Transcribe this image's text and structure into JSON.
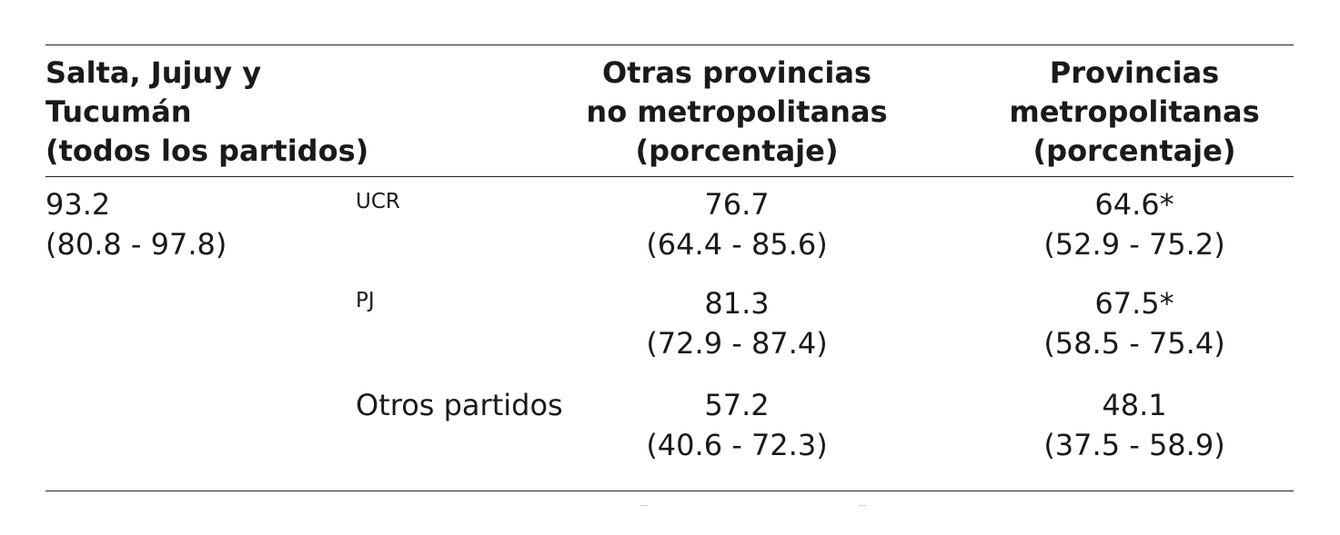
{
  "headers": {
    "col1": [
      "Salta, Jujuy y",
      "Tucumán",
      "(todos los partidos)"
    ],
    "col3": [
      "Otras provincias",
      "no metropolitanas",
      "(porcentaje)"
    ],
    "col4": [
      "Provincias",
      "metropolitanas",
      "(porcentaje)"
    ]
  },
  "col1_value": {
    "value": "93.2",
    "range": "(80.8 - 97.8)"
  },
  "rows": [
    {
      "party": "UCR",
      "otras": {
        "value": "76.7",
        "range": "(64.4 - 85.6)"
      },
      "metro": {
        "value": "64.6*",
        "range": "(52.9 - 75.2)"
      }
    },
    {
      "party": "PJ",
      "otras": {
        "value": "81.3",
        "range": "(72.9 - 87.4)"
      },
      "metro": {
        "value": "67.5*",
        "range": "(58.5 - 75.4)"
      }
    },
    {
      "party": "Otros partidos",
      "otras": {
        "value": "57.2",
        "range": "(40.6 - 72.3)"
      },
      "metro": {
        "value": "48.1",
        "range": "(37.5 - 58.9)"
      }
    }
  ]
}
